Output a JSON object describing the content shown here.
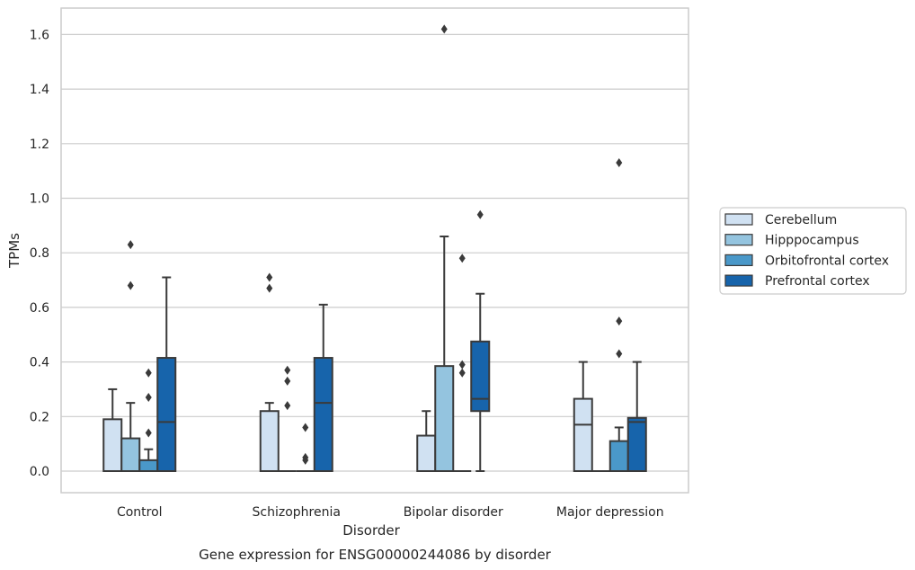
{
  "chart_data": {
    "type": "box",
    "title": "",
    "caption": "Gene expression for ENSG00000244086 by disorder",
    "xlabel": "Disorder",
    "ylabel": "TPMs",
    "ylim": [
      -0.08,
      1.7
    ],
    "yticks": [
      "0.0",
      "0.2",
      "0.4",
      "0.6",
      "0.8",
      "1.0",
      "1.2",
      "1.4",
      "1.6"
    ],
    "grid": "horizontal",
    "legend_position": "right",
    "categories": [
      "Control",
      "Schizophrenia",
      "Bipolar disorder",
      "Major depression"
    ],
    "series": [
      {
        "name": "Cerebellum",
        "color": "#d0e1f2",
        "boxes": [
          {
            "q1": 0,
            "median": 0,
            "q3": 0.19,
            "whisker_low": 0,
            "whisker_high": 0.3,
            "outliers": []
          },
          {
            "q1": 0,
            "median": 0,
            "q3": 0.22,
            "whisker_low": 0,
            "whisker_high": 0.25,
            "outliers": [
              0.67,
              0.71
            ]
          },
          {
            "q1": 0,
            "median": 0,
            "q3": 0.13,
            "whisker_low": 0,
            "whisker_high": 0.22,
            "outliers": []
          },
          {
            "q1": 0,
            "median": 0.17,
            "q3": 0.265,
            "whisker_low": 0,
            "whisker_high": 0.4,
            "outliers": []
          }
        ]
      },
      {
        "name": "Hipppocampus",
        "color": "#94c4df",
        "boxes": [
          {
            "q1": 0,
            "median": 0,
            "q3": 0.12,
            "whisker_low": 0,
            "whisker_high": 0.25,
            "outliers": [
              0.68,
              0.83
            ]
          },
          {
            "q1": 0,
            "median": 0,
            "q3": 0,
            "whisker_low": 0,
            "whisker_high": 0,
            "outliers": [
              0.24,
              0.33,
              0.37
            ]
          },
          {
            "q1": 0,
            "median": 0,
            "q3": 0.385,
            "whisker_low": 0,
            "whisker_high": 0.86,
            "outliers": [
              1.62
            ]
          },
          {
            "q1": 0,
            "median": 0,
            "q3": 0,
            "whisker_low": 0,
            "whisker_high": 0,
            "outliers": []
          }
        ]
      },
      {
        "name": "Orbitofrontal cortex",
        "color": "#4a98c9",
        "boxes": [
          {
            "q1": 0,
            "median": 0,
            "q3": 0.04,
            "whisker_low": 0,
            "whisker_high": 0.08,
            "outliers": [
              0.14,
              0.27,
              0.36
            ]
          },
          {
            "q1": 0,
            "median": 0,
            "q3": 0,
            "whisker_low": 0,
            "whisker_high": 0,
            "outliers": [
              0.04,
              0.05,
              0.16
            ]
          },
          {
            "q1": 0,
            "median": 0,
            "q3": 0,
            "whisker_low": 0,
            "whisker_high": 0,
            "outliers": [
              0.36,
              0.39,
              0.78
            ]
          },
          {
            "q1": 0,
            "median": 0,
            "q3": 0.11,
            "whisker_low": 0,
            "whisker_high": 0.16,
            "outliers": [
              0.43,
              0.55,
              1.13
            ]
          }
        ]
      },
      {
        "name": "Prefrontal cortex",
        "color": "#1764ab",
        "boxes": [
          {
            "q1": 0,
            "median": 0.18,
            "q3": 0.415,
            "whisker_low": 0,
            "whisker_high": 0.71,
            "outliers": []
          },
          {
            "q1": 0,
            "median": 0.25,
            "q3": 0.415,
            "whisker_low": 0,
            "whisker_high": 0.61,
            "outliers": []
          },
          {
            "q1": 0.22,
            "median": 0.265,
            "q3": 0.475,
            "whisker_low": 0,
            "whisker_high": 0.65,
            "outliers": [
              0.94
            ]
          },
          {
            "q1": 0,
            "median": 0.18,
            "q3": 0.195,
            "whisker_low": 0,
            "whisker_high": 0.4,
            "outliers": []
          }
        ]
      }
    ]
  }
}
